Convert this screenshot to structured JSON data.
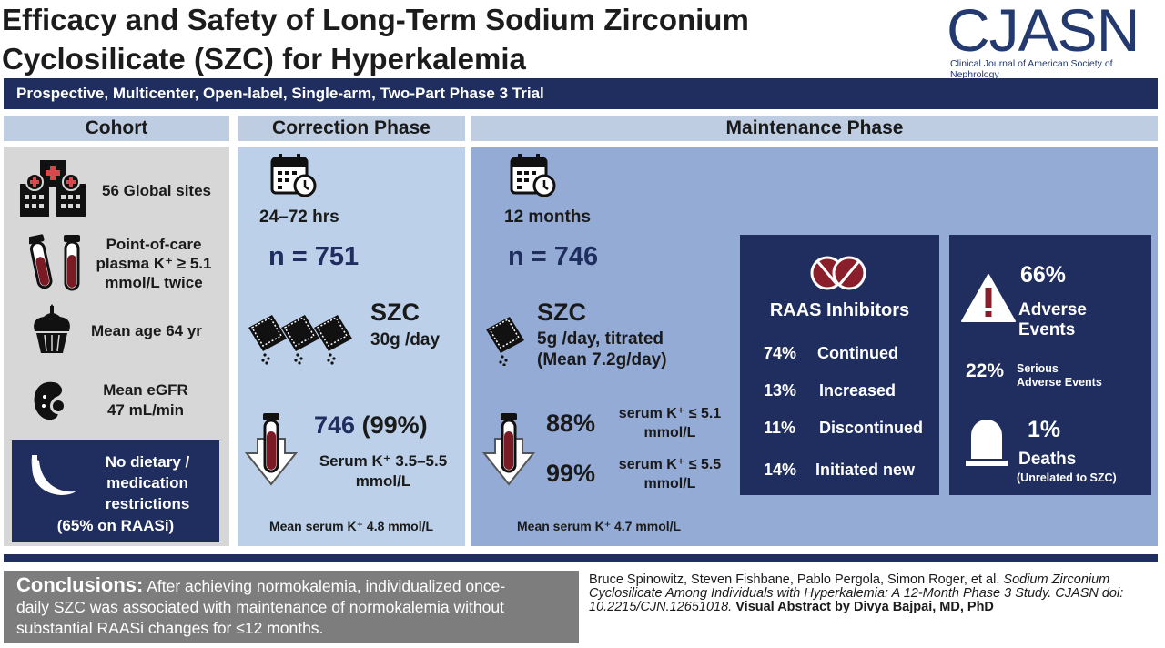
{
  "title": {
    "line1": "Efficacy and Safety of Long-Term Sodium Zirconium",
    "line2": "Cyclosilicate (SZC) for Hyperkalemia"
  },
  "logo": {
    "name": "CJASN",
    "subtitle": "Clinical Journal of American Society of Nephrology"
  },
  "banner": "Prospective, Multicenter, Open-label, Single-arm, Two-Part Phase 3 Trial",
  "colors": {
    "navy": "#1f2e5e",
    "header_blue": "#bfcde2",
    "cohort_gray": "#d7d7d7",
    "correction_blue": "#bcd0ea",
    "maintenance_blue": "#94abd6",
    "blood_red": "#7a1a24"
  },
  "cohort": {
    "header": "Cohort",
    "sites": "56 Global sites",
    "potassium": [
      "Point-of-care",
      "plasma K⁺ ≥ 5.1",
      "mmol/L twice"
    ],
    "age": "Mean age 64 yr",
    "egfr": [
      "Mean eGFR",
      "47 mL/min"
    ],
    "diet": [
      "No dietary /",
      "medication",
      "restrictions"
    ],
    "raasi": "(65% on RAASi)",
    "icons": [
      "hospital-buildings-icon",
      "blood-tubes-icon",
      "birthday-cupcake-icon",
      "kidney-icon",
      "banana-icon"
    ]
  },
  "correction": {
    "header": "Correction Phase",
    "duration": "24–72 hrs",
    "n": "n = 751",
    "drug": "SZC",
    "dose": "30g /day",
    "result_main": "746",
    "result_pct": "(99%)",
    "result_desc": [
      "Serum K⁺ 3.5–5.5",
      "mmol/L"
    ],
    "mean": "Mean serum K⁺ 4.8 mmol/L",
    "icons": [
      "calendar-clock-icon",
      "drug-sachets-icon",
      "blood-tube-down-arrow-icon"
    ]
  },
  "maintenance": {
    "header": "Maintenance Phase",
    "duration": "12 months",
    "n": "n = 746",
    "drug": "SZC",
    "dose": [
      "5g /day, titrated",
      "(Mean 7.2g/day)"
    ],
    "r1_pct": "88%",
    "r1_desc": [
      "serum K⁺ ≤ 5.1",
      "mmol/L"
    ],
    "r2_pct": "99%",
    "r2_desc": [
      "serum K⁺ ≤ 5.5",
      "mmol/L"
    ],
    "mean": "Mean serum K⁺ 4.7 mmol/L",
    "icons": [
      "calendar-clock-icon",
      "drug-sachet-icon",
      "blood-tube-down-arrow-icon"
    ]
  },
  "raas": {
    "title": "RAAS Inhibitors",
    "rows": [
      {
        "pct": "74%",
        "label": "Continued"
      },
      {
        "pct": "13%",
        "label": "Increased"
      },
      {
        "pct": "11%",
        "label": "Discontinued"
      },
      {
        "pct": "14%",
        "label": "Initiated new"
      }
    ],
    "icon": "pills-icon"
  },
  "safety": {
    "ae_pct": "66%",
    "ae_label": [
      "Adverse",
      "Events"
    ],
    "sae_pct": "22%",
    "sae_label": [
      "Serious",
      "Adverse Events"
    ],
    "death_pct": "1%",
    "death_label": "Deaths",
    "death_note": "(Unrelated to SZC)",
    "icons": [
      "warning-icon",
      "tombstone-icon"
    ]
  },
  "conclusions": {
    "heading": "Conclusions:",
    "text_line1": " After achieving normokalemia, individualized once-",
    "text_line2": "daily SZC was associated with maintenance of normokalemia without",
    "text_line3": "substantial RAASi changes for ≤12 months."
  },
  "citation": {
    "authors": "Bruce Spinowitz, Steven Fishbane, Pablo Pergola, Simon Roger, et al.",
    "article": "Sodium Zirconium Cyclosilicate Among Individuals with Hyperkalemia: A 12-Month Phase 3 Study. CJASN doi: 10.2215/CJN.12651018.",
    "credit": "Visual Abstract by Divya Bajpai, MD, PhD"
  }
}
